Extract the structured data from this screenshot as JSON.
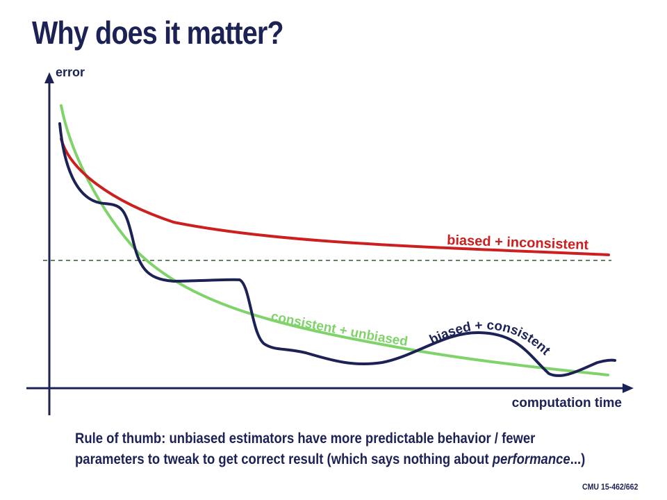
{
  "slide": {
    "title": "Why does it matter?",
    "footer": "CMU 15-462/662"
  },
  "colors": {
    "navy": "#1c2255",
    "red": "#cc1f1f",
    "green": "#7fd36a"
  },
  "diagram": {
    "y_axis_label": "error",
    "x_axis_label": "computation time",
    "reference_line": "dashed",
    "curves": {
      "biased_inconsistent": {
        "label": "biased + inconsistent"
      },
      "consistent_unbiased": {
        "label": "consistent + unbiased"
      },
      "biased_consistent": {
        "label": "biased + consistent"
      }
    }
  },
  "note": {
    "line1": "Rule of thumb: unbiased estimators have more predictable behavior / fewer",
    "line2_prefix": "parameters to tweak to get correct result (which says nothing about ",
    "line2_emphasis": "performance",
    "line2_suffix": "...)"
  }
}
